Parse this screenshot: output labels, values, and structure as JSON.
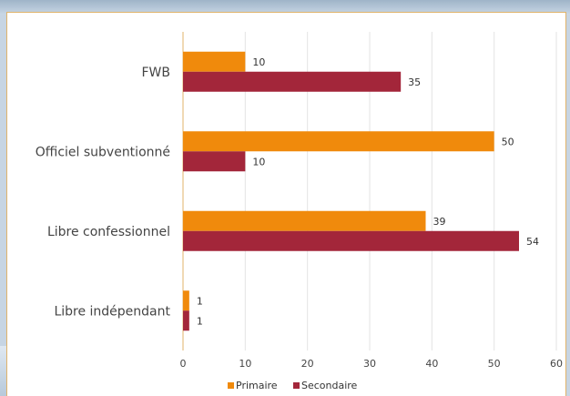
{
  "chart_data": {
    "type": "bar",
    "orientation": "horizontal",
    "title": "",
    "categories": [
      "FWB",
      "Officiel subventionné",
      "Libre confessionnel",
      "Libre indépendant"
    ],
    "series": [
      {
        "name": "Primaire",
        "values": [
          10,
          50,
          39,
          1
        ],
        "color": "#f08a0c"
      },
      {
        "name": "Secondaire",
        "values": [
          35,
          10,
          54,
          1
        ],
        "color": "#a3263a"
      }
    ],
    "xlim": [
      0,
      60
    ],
    "xticks": [
      "0",
      "10",
      "20",
      "30",
      "40",
      "50",
      "60"
    ],
    "grid": true,
    "legend_position": "bottom"
  },
  "colors": {
    "grid": "#e3e3e3",
    "axis": "#e0b36a"
  }
}
